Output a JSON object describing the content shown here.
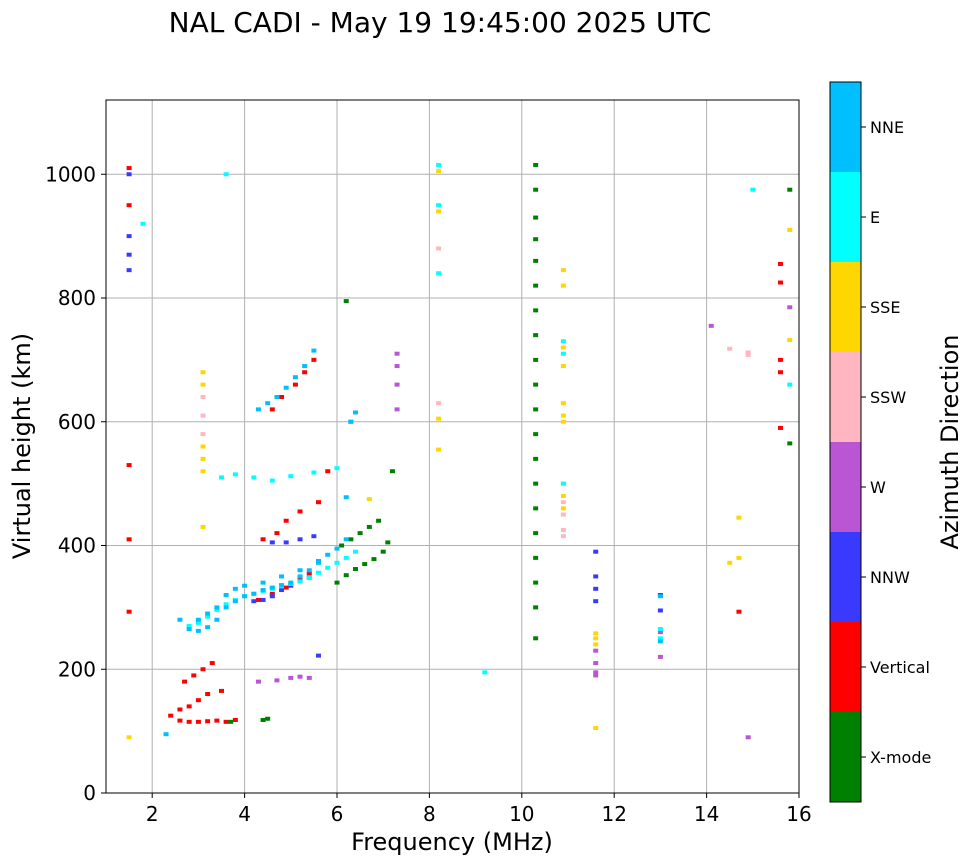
{
  "chart_data": {
    "type": "scatter",
    "title": "NAL CADI - May 19 19:45:00 2025 UTC",
    "xlabel": "Frequency (MHz)",
    "ylabel": "Virtual height (km)",
    "xlim": [
      1,
      16
    ],
    "ylim": [
      0,
      1120
    ],
    "xticks": [
      2,
      4,
      6,
      8,
      10,
      12,
      14,
      16
    ],
    "yticks": [
      0,
      200,
      400,
      600,
      800,
      1000
    ],
    "grid": true,
    "colorbar": {
      "label": "Azimuth Direction",
      "categories": [
        {
          "name": "X-mode",
          "color": "#008000"
        },
        {
          "name": "Vertical",
          "color": "#ff0000"
        },
        {
          "name": "NNW",
          "color": "#3a3aff"
        },
        {
          "name": "W",
          "color": "#ba55d3"
        },
        {
          "name": "SSW",
          "color": "#ffb6c1"
        },
        {
          "name": "SSE",
          "color": "#ffd700"
        },
        {
          "name": "E",
          "color": "#00ffff"
        },
        {
          "name": "NNE",
          "color": "#00bfff"
        }
      ]
    },
    "series": [
      {
        "name": "Vertical",
        "x": [
          2.4,
          2.6,
          2.8,
          3.0,
          3.2,
          3.4,
          3.6,
          3.8,
          2.6,
          2.8,
          3.0,
          3.2,
          3.5,
          2.7,
          2.9,
          3.1,
          3.3,
          4.3,
          4.6,
          4.9,
          5.2,
          5.4,
          4.4,
          4.7,
          4.9,
          5.2,
          4.6,
          4.8,
          5.1,
          5.3,
          5.5,
          1.5,
          1.5,
          1.5,
          1.5,
          1.5,
          14.7,
          15.6,
          15.6,
          15.6,
          15.6,
          15.6,
          5.6,
          5.8
        ],
        "y": [
          125,
          117,
          115,
          115,
          116,
          117,
          115,
          118,
          135,
          140,
          150,
          160,
          165,
          180,
          190,
          200,
          210,
          312,
          322,
          332,
          345,
          355,
          410,
          420,
          440,
          455,
          620,
          640,
          660,
          680,
          700,
          1010,
          950,
          530,
          410,
          293,
          293,
          590,
          680,
          700,
          825,
          855,
          470,
          520
        ]
      },
      {
        "name": "X-mode",
        "x": [
          6.0,
          6.2,
          6.4,
          6.6,
          6.8,
          7.0,
          7.1,
          6.1,
          6.3,
          6.5,
          6.7,
          6.9,
          4.4,
          4.5,
          3.7,
          7.2,
          10.3,
          10.3,
          10.3,
          10.3,
          10.3,
          10.3,
          10.3,
          10.3,
          10.3,
          10.3,
          10.3,
          10.3,
          10.3,
          10.3,
          10.3,
          10.3,
          10.3,
          10.3,
          10.3,
          10.3,
          15.8,
          15.8,
          6.2
        ],
        "y": [
          340,
          352,
          362,
          370,
          378,
          390,
          405,
          400,
          410,
          420,
          430,
          440,
          118,
          120,
          115,
          520,
          1015,
          975,
          930,
          895,
          860,
          820,
          780,
          740,
          700,
          660,
          620,
          580,
          540,
          500,
          460,
          420,
          380,
          340,
          300,
          250,
          975,
          565,
          795
        ]
      },
      {
        "name": "NNW",
        "x": [
          4.2,
          4.4,
          4.6,
          4.8,
          5.0,
          5.2,
          5.4,
          4.6,
          4.9,
          5.2,
          5.5,
          1.5,
          1.5,
          1.5,
          1.5,
          11.6,
          11.6,
          11.6,
          11.6,
          13.0,
          13.0,
          5.6
        ],
        "y": [
          310,
          312,
          318,
          328,
          335,
          342,
          348,
          405,
          405,
          410,
          415,
          1000,
          900,
          870,
          845,
          350,
          330,
          310,
          390,
          320,
          295,
          222
        ]
      },
      {
        "name": "W",
        "x": [
          4.3,
          4.7,
          5.0,
          5.2,
          5.4,
          7.3,
          7.3,
          7.3,
          7.3,
          11.6,
          11.6,
          11.6,
          11.6,
          13.0,
          13.0,
          14.9,
          15.8,
          14.1
        ],
        "y": [
          180,
          182,
          186,
          188,
          186,
          710,
          690,
          660,
          620,
          230,
          210,
          195,
          190,
          260,
          220,
          90,
          785,
          755
        ]
      },
      {
        "name": "SSW",
        "x": [
          3.1,
          3.1,
          3.1,
          8.2,
          8.2,
          10.9,
          10.9,
          10.9,
          10.9,
          10.9,
          14.5,
          14.9,
          14.9
        ],
        "y": [
          640,
          610,
          580,
          880,
          630,
          500,
          470,
          450,
          425,
          415,
          718,
          712,
          708
        ]
      },
      {
        "name": "SSE",
        "x": [
          3.1,
          3.1,
          3.1,
          3.1,
          3.1,
          3.1,
          8.2,
          8.2,
          8.2,
          8.2,
          10.9,
          10.9,
          10.9,
          10.9,
          10.9,
          10.9,
          10.9,
          10.9,
          10.9,
          11.6,
          11.6,
          11.6,
          11.6,
          14.7,
          14.7,
          14.5,
          15.8,
          15.8,
          1.5,
          6.7
        ],
        "y": [
          680,
          660,
          560,
          540,
          520,
          430,
          1005,
          940,
          605,
          555,
          845,
          820,
          720,
          690,
          630,
          610,
          600,
          480,
          460,
          258,
          250,
          240,
          105,
          445,
          380,
          372,
          910,
          732,
          90,
          475
        ]
      },
      {
        "name": "E",
        "x": [
          2.8,
          3.0,
          3.2,
          3.4,
          3.6,
          3.8,
          4.0,
          4.2,
          4.4,
          4.6,
          4.8,
          5.0,
          5.2,
          5.4,
          5.6,
          5.8,
          6.0,
          6.2,
          6.4,
          3.5,
          3.8,
          4.2,
          4.6,
          5.0,
          5.5,
          6.0,
          8.2,
          8.2,
          8.2,
          10.9,
          10.9,
          10.9,
          13.0,
          13.0,
          15.0,
          15.8,
          9.2,
          1.8,
          3.6
        ],
        "y": [
          270,
          275,
          285,
          296,
          305,
          312,
          318,
          322,
          326,
          330,
          334,
          338,
          342,
          348,
          356,
          364,
          372,
          380,
          390,
          510,
          515,
          510,
          505,
          512,
          518,
          525,
          1015,
          950,
          840,
          730,
          710,
          500,
          265,
          250,
          975,
          660,
          195,
          920,
          1000
        ]
      },
      {
        "name": "NNE",
        "x": [
          2.6,
          2.8,
          3.0,
          3.2,
          3.4,
          3.6,
          3.8,
          4.0,
          4.2,
          4.4,
          4.6,
          4.8,
          5.0,
          5.2,
          5.4,
          5.6,
          5.8,
          6.0,
          6.2,
          6.3,
          6.4,
          3.0,
          3.2,
          3.4,
          3.6,
          3.8,
          4.0,
          4.4,
          4.8,
          5.2,
          5.6,
          6.2,
          6.3,
          4.3,
          4.5,
          4.7,
          4.9,
          5.1,
          5.3,
          5.5,
          13.0,
          13.0,
          2.3
        ],
        "y": [
          280,
          265,
          262,
          268,
          280,
          300,
          310,
          318,
          322,
          328,
          332,
          336,
          340,
          350,
          360,
          372,
          385,
          395,
          410,
          600,
          615,
          280,
          290,
          300,
          320,
          330,
          335,
          340,
          350,
          360,
          375,
          478,
          600,
          620,
          630,
          640,
          655,
          672,
          690,
          715,
          245,
          318,
          95
        ]
      }
    ]
  }
}
